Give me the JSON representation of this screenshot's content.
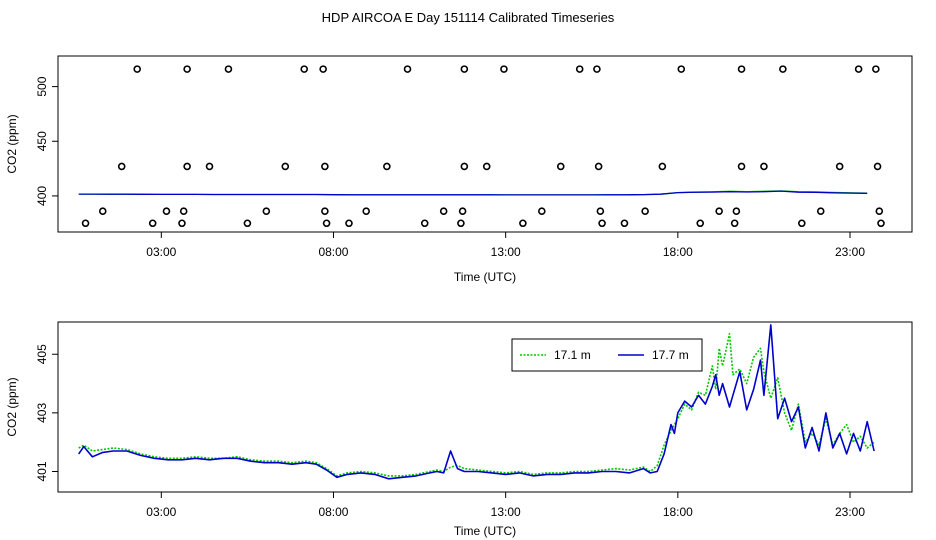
{
  "figure": {
    "title": "HDP AIRCOA E  Day 151114  Calibrated Timeseries"
  },
  "chart_data": [
    {
      "type": "scatter",
      "xlabel": "Time (UTC)",
      "ylabel": "CO2 (ppm)",
      "xlim": [
        0,
        24.8
      ],
      "ylim": [
        367,
        528
      ],
      "xticks": [
        {
          "v": 3,
          "label": "03:00"
        },
        {
          "v": 8,
          "label": "08:00"
        },
        {
          "v": 13,
          "label": "13:00"
        },
        {
          "v": 18,
          "label": "18:00"
        },
        {
          "v": 23,
          "label": "23:00"
        }
      ],
      "yticks": [
        {
          "v": 400,
          "label": "400"
        },
        {
          "v": 450,
          "label": "450"
        },
        {
          "v": 500,
          "label": "500"
        }
      ],
      "points": [
        [
          0.8,
          375
        ],
        [
          1.3,
          386
        ],
        [
          1.85,
          427
        ],
        [
          2.3,
          516
        ],
        [
          2.75,
          375
        ],
        [
          3.15,
          386
        ],
        [
          3.6,
          375
        ],
        [
          3.65,
          386
        ],
        [
          3.75,
          516
        ],
        [
          3.75,
          427
        ],
        [
          4.4,
          427
        ],
        [
          4.95,
          516
        ],
        [
          5.5,
          375
        ],
        [
          6.05,
          386
        ],
        [
          6.6,
          427
        ],
        [
          7.15,
          516
        ],
        [
          7.7,
          516
        ],
        [
          7.75,
          427
        ],
        [
          7.75,
          386
        ],
        [
          7.8,
          375
        ],
        [
          8.45,
          375
        ],
        [
          8.95,
          386
        ],
        [
          9.55,
          427
        ],
        [
          10.15,
          516
        ],
        [
          10.65,
          375
        ],
        [
          11.2,
          386
        ],
        [
          11.7,
          375
        ],
        [
          11.75,
          386
        ],
        [
          11.8,
          516
        ],
        [
          11.8,
          427
        ],
        [
          12.45,
          427
        ],
        [
          12.95,
          516
        ],
        [
          13.5,
          375
        ],
        [
          14.05,
          386
        ],
        [
          14.6,
          427
        ],
        [
          15.15,
          516
        ],
        [
          15.65,
          516
        ],
        [
          15.7,
          427
        ],
        [
          15.75,
          386
        ],
        [
          15.8,
          375
        ],
        [
          16.45,
          375
        ],
        [
          17.05,
          386
        ],
        [
          17.55,
          427
        ],
        [
          18.1,
          516
        ],
        [
          18.65,
          375
        ],
        [
          19.2,
          386
        ],
        [
          19.65,
          375
        ],
        [
          19.7,
          386
        ],
        [
          19.85,
          516
        ],
        [
          19.85,
          427
        ],
        [
          20.5,
          427
        ],
        [
          21.05,
          516
        ],
        [
          21.6,
          375
        ],
        [
          22.15,
          386
        ],
        [
          22.7,
          427
        ],
        [
          23.25,
          516
        ],
        [
          23.75,
          516
        ],
        [
          23.8,
          427
        ],
        [
          23.85,
          386
        ],
        [
          23.9,
          375
        ]
      ],
      "series": [
        {
          "name": "17.1 m",
          "color": "#00c800",
          "x": [
            0.6,
            1.0,
            1.5,
            2.0,
            2.5,
            3.0,
            3.5,
            4.0,
            4.5,
            5.0,
            5.5,
            6.0,
            6.5,
            7.0,
            7.5,
            8.0,
            8.5,
            9.0,
            9.5,
            10.0,
            10.5,
            11.0,
            11.5,
            12.0,
            12.5,
            13.0,
            13.5,
            14.0,
            14.5,
            15.0,
            15.5,
            16.0,
            16.5,
            17.0,
            17.5,
            18.0,
            18.5,
            19.0,
            19.5,
            20.0,
            20.5,
            21.0,
            21.5,
            22.0,
            22.5,
            23.0,
            23.5
          ],
          "y": [
            401.7,
            401.7,
            401.6,
            401.6,
            401.5,
            401.4,
            401.4,
            401.4,
            401.3,
            401.3,
            401.3,
            401.3,
            401.3,
            401.3,
            401.3,
            401.1,
            401.0,
            401.0,
            401.0,
            401.0,
            401.0,
            401.0,
            401.0,
            401.0,
            401.0,
            400.9,
            400.9,
            400.9,
            400.9,
            400.9,
            400.9,
            401.0,
            401.0,
            401.2,
            401.6,
            403.0,
            403.4,
            403.8,
            404.2,
            403.9,
            404.2,
            404.6,
            403.9,
            403.7,
            403.2,
            402.9,
            402.6
          ]
        },
        {
          "name": "17.7 m",
          "color": "#0000cc",
          "x": [
            0.6,
            1.0,
            1.5,
            2.0,
            2.5,
            3.0,
            3.5,
            4.0,
            4.5,
            5.0,
            5.5,
            6.0,
            6.5,
            7.0,
            7.5,
            8.0,
            8.5,
            9.0,
            9.5,
            10.0,
            10.5,
            11.0,
            11.5,
            12.0,
            12.5,
            13.0,
            13.5,
            14.0,
            14.5,
            15.0,
            15.5,
            16.0,
            16.5,
            17.0,
            17.5,
            18.0,
            18.5,
            19.0,
            19.5,
            20.0,
            20.5,
            21.0,
            21.5,
            22.0,
            22.5,
            23.0,
            23.5
          ],
          "y": [
            401.7,
            401.7,
            401.6,
            401.6,
            401.5,
            401.4,
            401.4,
            401.4,
            401.3,
            401.3,
            401.3,
            401.3,
            401.3,
            401.3,
            401.3,
            401.1,
            401.0,
            401.0,
            401.0,
            401.0,
            401.0,
            401.0,
            401.0,
            401.0,
            401.0,
            400.9,
            400.9,
            400.9,
            400.9,
            400.9,
            400.9,
            401.0,
            401.0,
            401.2,
            401.6,
            403.0,
            403.4,
            403.5,
            403.9,
            403.6,
            403.9,
            404.4,
            403.4,
            403.3,
            402.9,
            402.6,
            402.4
          ]
        }
      ]
    },
    {
      "type": "line",
      "xlabel": "Time (UTC)",
      "ylabel": "CO2 (ppm)",
      "xlim": [
        0,
        24.8
      ],
      "ylim": [
        400.3,
        406.1
      ],
      "legend": "top-center",
      "xticks": [
        {
          "v": 3,
          "label": "03:00"
        },
        {
          "v": 8,
          "label": "08:00"
        },
        {
          "v": 13,
          "label": "13:00"
        },
        {
          "v": 18,
          "label": "18:00"
        },
        {
          "v": 23,
          "label": "23:00"
        }
      ],
      "yticks": [
        {
          "v": 401,
          "label": "401"
        },
        {
          "v": 403,
          "label": "403"
        },
        {
          "v": 405,
          "label": "405"
        }
      ],
      "series": [
        {
          "name": "17.1 m",
          "color": "#00c800",
          "dash": "2,1.5",
          "x": [
            0.6,
            0.75,
            1.0,
            1.3,
            1.6,
            2.0,
            2.4,
            2.8,
            3.2,
            3.6,
            4.0,
            4.4,
            4.8,
            5.2,
            5.6,
            6.0,
            6.4,
            6.8,
            7.2,
            7.5,
            7.8,
            8.1,
            8.4,
            8.8,
            9.2,
            9.6,
            10.0,
            10.4,
            10.8,
            11.0,
            11.2,
            11.4,
            11.6,
            11.8,
            12.2,
            12.6,
            13.0,
            13.4,
            13.8,
            14.2,
            14.6,
            15.0,
            15.4,
            15.8,
            16.2,
            16.6,
            17.0,
            17.2,
            17.4,
            17.6,
            17.8,
            17.9,
            18.0,
            18.2,
            18.4,
            18.6,
            18.8,
            19.0,
            19.1,
            19.2,
            19.3,
            19.5,
            19.6,
            19.8,
            20.0,
            20.2,
            20.4,
            20.5,
            20.7,
            20.9,
            21.1,
            21.3,
            21.5,
            21.7,
            21.9,
            22.1,
            22.3,
            22.5,
            22.7,
            22.9,
            23.1,
            23.3,
            23.5,
            23.7
          ],
          "y": [
            401.8,
            401.9,
            401.7,
            401.75,
            401.8,
            401.75,
            401.6,
            401.5,
            401.45,
            401.45,
            401.5,
            401.45,
            401.45,
            401.5,
            401.4,
            401.35,
            401.35,
            401.3,
            401.35,
            401.3,
            401.1,
            400.85,
            400.95,
            401.0,
            400.95,
            400.85,
            400.85,
            400.9,
            401.0,
            401.05,
            401.0,
            401.15,
            401.2,
            401.1,
            401.05,
            401.0,
            400.95,
            401.0,
            400.9,
            400.95,
            400.95,
            401.0,
            401.0,
            401.05,
            401.1,
            401.05,
            401.15,
            401.0,
            401.2,
            401.9,
            402.4,
            402.6,
            402.8,
            403.3,
            403.1,
            403.7,
            403.6,
            404.6,
            403.8,
            405.2,
            404.6,
            405.7,
            404.3,
            404.5,
            404.0,
            404.9,
            405.2,
            404.4,
            403.5,
            404.2,
            403.0,
            402.4,
            403.3,
            402.0,
            402.3,
            401.9,
            402.8,
            401.9,
            402.3,
            402.6,
            402.0,
            402.2,
            401.8,
            402.0
          ]
        },
        {
          "name": "17.7 m",
          "color": "#0000cc",
          "dash": "",
          "x": [
            0.6,
            0.75,
            1.0,
            1.3,
            1.6,
            2.0,
            2.4,
            2.8,
            3.2,
            3.6,
            4.0,
            4.4,
            4.8,
            5.2,
            5.6,
            6.0,
            6.4,
            6.8,
            7.2,
            7.5,
            7.8,
            8.1,
            8.4,
            8.8,
            9.2,
            9.6,
            10.0,
            10.4,
            10.8,
            11.0,
            11.2,
            11.4,
            11.6,
            11.8,
            12.2,
            12.6,
            13.0,
            13.4,
            13.8,
            14.2,
            14.6,
            15.0,
            15.4,
            15.8,
            16.2,
            16.6,
            17.0,
            17.2,
            17.4,
            17.6,
            17.8,
            17.9,
            18.0,
            18.2,
            18.4,
            18.6,
            18.8,
            19.0,
            19.1,
            19.2,
            19.3,
            19.5,
            19.6,
            19.8,
            20.0,
            20.2,
            20.4,
            20.5,
            20.7,
            20.9,
            21.1,
            21.3,
            21.5,
            21.7,
            21.9,
            22.1,
            22.3,
            22.5,
            22.7,
            22.9,
            23.1,
            23.3,
            23.5,
            23.7
          ],
          "y": [
            401.6,
            401.85,
            401.5,
            401.65,
            401.7,
            401.7,
            401.55,
            401.45,
            401.4,
            401.4,
            401.45,
            401.4,
            401.45,
            401.45,
            401.35,
            401.3,
            401.3,
            401.25,
            401.3,
            401.25,
            401.05,
            400.8,
            400.9,
            400.95,
            400.9,
            400.75,
            400.8,
            400.85,
            400.95,
            401.0,
            400.95,
            401.7,
            401.1,
            401.0,
            401.0,
            400.95,
            400.9,
            400.95,
            400.85,
            400.9,
            400.9,
            400.95,
            400.95,
            401.0,
            401.0,
            400.95,
            401.1,
            400.95,
            401.0,
            401.6,
            402.6,
            402.3,
            403.0,
            403.4,
            403.2,
            403.6,
            403.3,
            403.9,
            404.3,
            403.6,
            404.0,
            403.2,
            403.6,
            404.4,
            403.1,
            403.8,
            404.8,
            403.6,
            406.0,
            402.8,
            403.5,
            402.7,
            403.2,
            401.8,
            402.5,
            401.7,
            403.0,
            401.8,
            402.3,
            401.6,
            402.3,
            401.7,
            402.7,
            401.7
          ]
        }
      ]
    }
  ]
}
